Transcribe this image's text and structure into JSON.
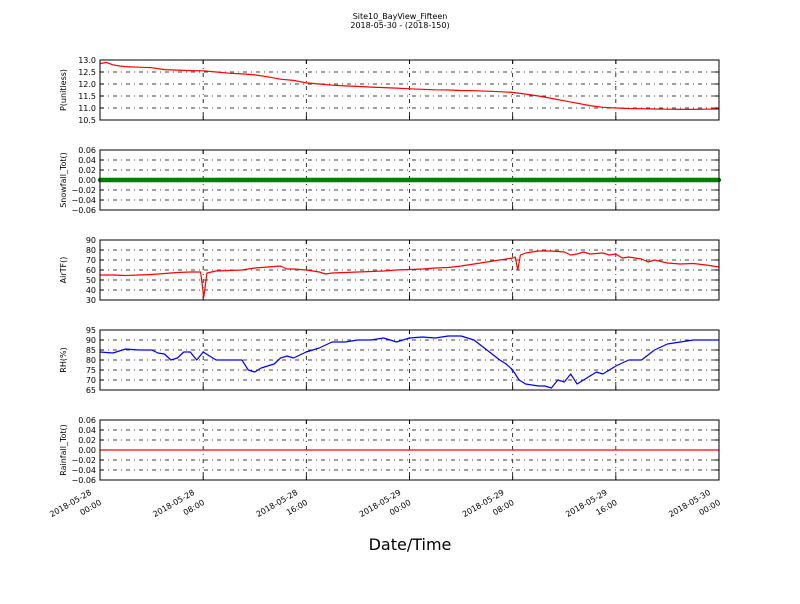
{
  "figure": {
    "title": "Site10_BayView_Fifteen",
    "subtitle": "2018-05-30 - (2018-150)",
    "xlabel": "Date/Time"
  },
  "chart_data": {
    "type": "line",
    "x_ticks": [
      {
        "hour": 0,
        "line1": "2018-05-28",
        "line2": "00:00"
      },
      {
        "hour": 8,
        "line1": "2018-05-28",
        "line2": "08:00"
      },
      {
        "hour": 16,
        "line1": "2018-05-28",
        "line2": "16:00"
      },
      {
        "hour": 24,
        "line1": "2018-05-29",
        "line2": "00:00"
      },
      {
        "hour": 32,
        "line1": "2018-05-29",
        "line2": "08:00"
      },
      {
        "hour": 40,
        "line1": "2018-05-29",
        "line2": "16:00"
      },
      {
        "hour": 48,
        "line1": "2018-05-30",
        "line2": "00:00"
      }
    ],
    "x_start": "2018-05-28 00:00",
    "x_end": "2018-05-30 00:00",
    "grid": true,
    "panels": [
      {
        "ylabel": "P(unitless)",
        "ylim": [
          10.5,
          13.0
        ],
        "yticks": [
          "10.5",
          "11.0",
          "11.5",
          "12.0",
          "12.5",
          "13.0"
        ],
        "series": [
          {
            "color": "#ff0000",
            "points": [
              [
                0,
                12.85
              ],
              [
                0.5,
                12.9
              ],
              [
                1,
                12.8
              ],
              [
                1.5,
                12.75
              ],
              [
                2,
                12.72
              ],
              [
                3,
                12.7
              ],
              [
                4,
                12.68
              ],
              [
                5,
                12.6
              ],
              [
                6,
                12.58
              ],
              [
                7,
                12.56
              ],
              [
                8,
                12.55
              ],
              [
                9,
                12.5
              ],
              [
                10,
                12.45
              ],
              [
                11,
                12.42
              ],
              [
                12,
                12.38
              ],
              [
                13,
                12.3
              ],
              [
                14,
                12.2
              ],
              [
                15,
                12.15
              ],
              [
                16,
                12.05
              ],
              [
                17,
                12.0
              ],
              [
                18,
                11.95
              ],
              [
                19,
                11.92
              ],
              [
                20,
                11.9
              ],
              [
                21,
                11.87
              ],
              [
                22,
                11.85
              ],
              [
                23,
                11.83
              ],
              [
                24,
                11.8
              ],
              [
                25,
                11.78
              ],
              [
                26,
                11.76
              ],
              [
                27,
                11.75
              ],
              [
                28,
                11.73
              ],
              [
                29,
                11.72
              ],
              [
                30,
                11.7
              ],
              [
                31,
                11.68
              ],
              [
                32,
                11.65
              ],
              [
                33,
                11.58
              ],
              [
                34,
                11.5
              ],
              [
                35,
                11.4
              ],
              [
                36,
                11.3
              ],
              [
                37,
                11.2
              ],
              [
                38,
                11.1
              ],
              [
                39,
                11.03
              ],
              [
                40,
                11.0
              ],
              [
                41,
                10.98
              ],
              [
                42,
                10.97
              ],
              [
                43,
                10.96
              ],
              [
                44,
                10.95
              ],
              [
                45,
                10.94
              ],
              [
                46,
                10.94
              ],
              [
                47,
                10.95
              ],
              [
                48,
                10.96
              ]
            ]
          }
        ]
      },
      {
        "ylabel": "Snowfall_Tot()",
        "ylim": [
          -0.06,
          0.06
        ],
        "yticks": [
          "−0.06",
          "−0.04",
          "−0.02",
          "0.00",
          "0.02",
          "0.04",
          "0.06"
        ],
        "series": [
          {
            "color": "#008000",
            "marker": "dot",
            "points": [
              [
                0,
                0
              ],
              [
                48,
                0
              ]
            ]
          }
        ]
      },
      {
        "ylabel": "AirTF()",
        "ylim": [
          30,
          90
        ],
        "yticks": [
          "30",
          "40",
          "50",
          "60",
          "70",
          "80",
          "90"
        ],
        "series": [
          {
            "color": "#ff0000",
            "points": [
              [
                0,
                55
              ],
              [
                1,
                55
              ],
              [
                2,
                54.5
              ],
              [
                3,
                55
              ],
              [
                4,
                55.5
              ],
              [
                5,
                56.5
              ],
              [
                6,
                57.5
              ],
              [
                7,
                58
              ],
              [
                7.8,
                58
              ],
              [
                8.05,
                33
              ],
              [
                8.3,
                57
              ],
              [
                9,
                59
              ],
              [
                10,
                59.5
              ],
              [
                11,
                60
              ],
              [
                12,
                62
              ],
              [
                13,
                63
              ],
              [
                14,
                64
              ],
              [
                14.5,
                61
              ],
              [
                15,
                61
              ],
              [
                16,
                60
              ],
              [
                17,
                58
              ],
              [
                17.5,
                56
              ],
              [
                18,
                57
              ],
              [
                19,
                57.5
              ],
              [
                20,
                58
              ],
              [
                21,
                58.5
              ],
              [
                22,
                59
              ],
              [
                23,
                60
              ],
              [
                24,
                60.5
              ],
              [
                25,
                61
              ],
              [
                26,
                62
              ],
              [
                27,
                62.5
              ],
              [
                28,
                64
              ],
              [
                29,
                66
              ],
              [
                30,
                68
              ],
              [
                31,
                70
              ],
              [
                32,
                72
              ],
              [
                32.2,
                73
              ],
              [
                32.4,
                60
              ],
              [
                32.6,
                75
              ],
              [
                33,
                77
              ],
              [
                34,
                79
              ],
              [
                35,
                79
              ],
              [
                36,
                78
              ],
              [
                36.5,
                75
              ],
              [
                37,
                76
              ],
              [
                37.5,
                78
              ],
              [
                38,
                76
              ],
              [
                39,
                77
              ],
              [
                39.5,
                75
              ],
              [
                40,
                76
              ],
              [
                40.5,
                72
              ],
              [
                41,
                73
              ],
              [
                42,
                71
              ],
              [
                42.5,
                68
              ],
              [
                43,
                70
              ],
              [
                44,
                67
              ],
              [
                45,
                66
              ],
              [
                46,
                66.5
              ],
              [
                47,
                65
              ],
              [
                48,
                63
              ]
            ]
          }
        ]
      },
      {
        "ylabel": "RH(%)",
        "ylim": [
          65,
          95
        ],
        "yticks": [
          "65",
          "70",
          "75",
          "80",
          "85",
          "90",
          "95"
        ],
        "series": [
          {
            "color": "#0000ff",
            "points": [
              [
                0,
                84
              ],
              [
                1,
                83.5
              ],
              [
                2,
                85.5
              ],
              [
                3,
                85
              ],
              [
                4,
                85
              ],
              [
                4.5,
                83.5
              ],
              [
                5,
                83
              ],
              [
                5.5,
                80
              ],
              [
                6,
                81
              ],
              [
                6.5,
                84
              ],
              [
                7,
                84
              ],
              [
                7.5,
                80
              ],
              [
                8,
                84
              ],
              [
                8.5,
                82
              ],
              [
                9,
                80
              ],
              [
                10,
                80
              ],
              [
                11,
                80
              ],
              [
                11.5,
                75
              ],
              [
                12,
                74
              ],
              [
                12.5,
                76
              ],
              [
                13,
                77
              ],
              [
                13.5,
                78
              ],
              [
                14,
                81
              ],
              [
                14.5,
                82
              ],
              [
                15,
                81
              ],
              [
                16,
                84
              ],
              [
                17,
                86
              ],
              [
                18,
                89
              ],
              [
                19,
                89
              ],
              [
                20,
                90
              ],
              [
                21,
                90
              ],
              [
                22,
                91
              ],
              [
                23,
                89
              ],
              [
                24,
                91
              ],
              [
                25,
                91.5
              ],
              [
                26,
                91
              ],
              [
                27,
                92
              ],
              [
                28,
                92
              ],
              [
                29,
                90
              ],
              [
                30,
                85
              ],
              [
                31,
                80
              ],
              [
                31.5,
                78
              ],
              [
                32,
                75
              ],
              [
                32.5,
                70
              ],
              [
                33,
                68
              ],
              [
                34,
                67
              ],
              [
                34.5,
                67
              ],
              [
                35,
                66
              ],
              [
                35.5,
                70
              ],
              [
                36,
                69
              ],
              [
                36.5,
                73
              ],
              [
                37,
                68
              ],
              [
                37.5,
                70
              ],
              [
                38,
                72
              ],
              [
                38.5,
                74
              ],
              [
                39,
                73
              ],
              [
                40,
                77
              ],
              [
                41,
                80
              ],
              [
                42,
                80
              ],
              [
                43,
                85
              ],
              [
                44,
                88
              ],
              [
                45,
                89
              ],
              [
                46,
                90
              ],
              [
                47,
                90
              ],
              [
                48,
                90
              ]
            ]
          }
        ]
      },
      {
        "ylabel": "Rainfall_Tot()",
        "ylim": [
          -0.06,
          0.06
        ],
        "yticks": [
          "−0.06",
          "−0.04",
          "−0.02",
          "0.00",
          "0.02",
          "0.04",
          "0.06"
        ],
        "series": [
          {
            "color": "#ff0000",
            "points": [
              [
                0,
                0
              ],
              [
                48,
                0
              ]
            ]
          }
        ]
      }
    ]
  }
}
